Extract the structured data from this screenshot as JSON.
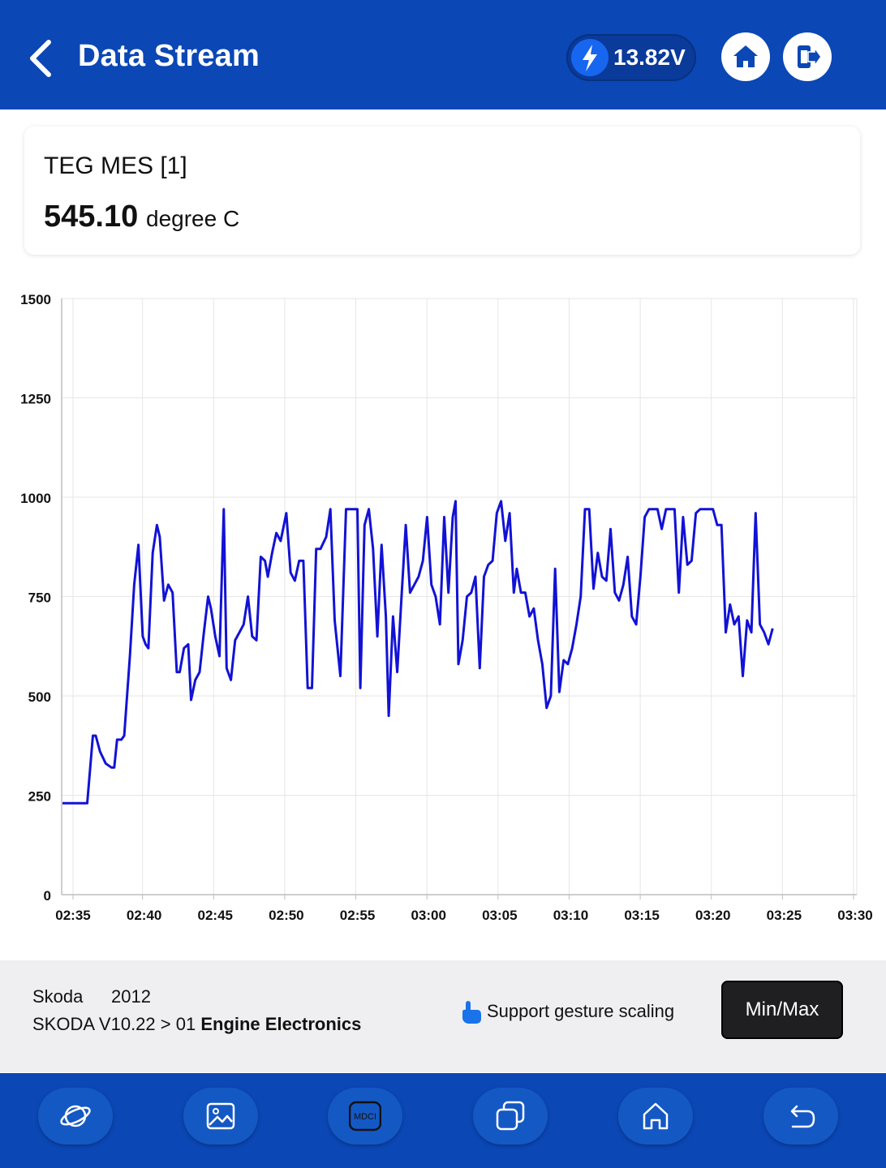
{
  "header": {
    "title": "Data Stream",
    "voltage": "13.82V"
  },
  "card": {
    "name": "TEG MES [1]",
    "value": "545.10",
    "unit": "degree C"
  },
  "chart_data": {
    "type": "line",
    "title": "",
    "xlabel": "",
    "ylabel": "",
    "ylim": [
      0,
      1500
    ],
    "yticks": [
      "0",
      "250",
      "500",
      "750",
      "1000",
      "1250",
      "1500"
    ],
    "xticks": [
      "02:35",
      "02:40",
      "02:45",
      "02:50",
      "02:55",
      "03:00",
      "03:05",
      "03:10",
      "03:15",
      "03:20",
      "03:25",
      "03:30"
    ],
    "xrange_minutes": [
      0,
      55
    ],
    "grid": true,
    "color": "#1212d6",
    "series": [
      {
        "values": [
          [
            0.0,
            230
          ],
          [
            0.3,
            230
          ],
          [
            1.0,
            230
          ],
          [
            1.4,
            400
          ],
          [
            1.6,
            400
          ],
          [
            1.9,
            360
          ],
          [
            2.3,
            330
          ],
          [
            2.7,
            320
          ],
          [
            2.9,
            320
          ],
          [
            3.1,
            390
          ],
          [
            3.4,
            390
          ],
          [
            3.6,
            400
          ],
          [
            4.0,
            600
          ],
          [
            4.3,
            780
          ],
          [
            4.6,
            880
          ],
          [
            4.9,
            650
          ],
          [
            5.1,
            630
          ],
          [
            5.3,
            620
          ],
          [
            5.6,
            860
          ],
          [
            5.9,
            930
          ],
          [
            6.1,
            900
          ],
          [
            6.4,
            740
          ],
          [
            6.7,
            780
          ],
          [
            7.0,
            760
          ],
          [
            7.3,
            560
          ],
          [
            7.5,
            560
          ],
          [
            7.8,
            620
          ],
          [
            8.1,
            630
          ],
          [
            8.3,
            490
          ],
          [
            8.6,
            540
          ],
          [
            8.9,
            560
          ],
          [
            9.2,
            660
          ],
          [
            9.5,
            750
          ],
          [
            9.7,
            720
          ],
          [
            10.0,
            650
          ],
          [
            10.3,
            600
          ],
          [
            10.6,
            970
          ],
          [
            10.8,
            570
          ],
          [
            11.1,
            540
          ],
          [
            11.4,
            640
          ],
          [
            11.7,
            660
          ],
          [
            12.0,
            680
          ],
          [
            12.3,
            750
          ],
          [
            12.6,
            650
          ],
          [
            12.9,
            640
          ],
          [
            13.2,
            850
          ],
          [
            13.5,
            840
          ],
          [
            13.7,
            800
          ],
          [
            14.0,
            860
          ],
          [
            14.3,
            910
          ],
          [
            14.6,
            890
          ],
          [
            15.0,
            960
          ],
          [
            15.3,
            810
          ],
          [
            15.6,
            790
          ],
          [
            15.9,
            840
          ],
          [
            16.2,
            840
          ],
          [
            16.5,
            520
          ],
          [
            16.8,
            520
          ],
          [
            17.1,
            870
          ],
          [
            17.4,
            870
          ],
          [
            17.8,
            900
          ],
          [
            18.1,
            970
          ],
          [
            18.4,
            690
          ],
          [
            18.8,
            550
          ],
          [
            19.2,
            970
          ],
          [
            19.6,
            970
          ],
          [
            20.0,
            970
          ],
          [
            20.2,
            520
          ],
          [
            20.5,
            930
          ],
          [
            20.8,
            970
          ],
          [
            21.1,
            870
          ],
          [
            21.4,
            650
          ],
          [
            21.7,
            880
          ],
          [
            22.0,
            700
          ],
          [
            22.2,
            450
          ],
          [
            22.5,
            700
          ],
          [
            22.8,
            560
          ],
          [
            23.1,
            750
          ],
          [
            23.4,
            930
          ],
          [
            23.7,
            760
          ],
          [
            24.0,
            780
          ],
          [
            24.3,
            800
          ],
          [
            24.6,
            840
          ],
          [
            24.9,
            950
          ],
          [
            25.2,
            780
          ],
          [
            25.5,
            750
          ],
          [
            25.8,
            680
          ],
          [
            26.1,
            950
          ],
          [
            26.4,
            760
          ],
          [
            26.7,
            950
          ],
          [
            26.9,
            990
          ],
          [
            27.1,
            580
          ],
          [
            27.4,
            640
          ],
          [
            27.7,
            750
          ],
          [
            28.0,
            760
          ],
          [
            28.3,
            800
          ],
          [
            28.6,
            570
          ],
          [
            28.9,
            800
          ],
          [
            29.2,
            830
          ],
          [
            29.5,
            840
          ],
          [
            29.8,
            960
          ],
          [
            30.1,
            990
          ],
          [
            30.4,
            890
          ],
          [
            30.7,
            960
          ],
          [
            31.0,
            760
          ],
          [
            31.2,
            820
          ],
          [
            31.5,
            760
          ],
          [
            31.8,
            760
          ],
          [
            32.1,
            700
          ],
          [
            32.4,
            720
          ],
          [
            32.7,
            640
          ],
          [
            33.0,
            580
          ],
          [
            33.3,
            470
          ],
          [
            33.6,
            500
          ],
          [
            33.9,
            820
          ],
          [
            34.2,
            510
          ],
          [
            34.5,
            590
          ],
          [
            34.8,
            580
          ],
          [
            35.1,
            620
          ],
          [
            35.4,
            680
          ],
          [
            35.7,
            750
          ],
          [
            36.0,
            970
          ],
          [
            36.3,
            970
          ],
          [
            36.6,
            770
          ],
          [
            36.9,
            860
          ],
          [
            37.2,
            800
          ],
          [
            37.5,
            790
          ],
          [
            37.8,
            920
          ],
          [
            38.1,
            760
          ],
          [
            38.4,
            740
          ],
          [
            38.7,
            780
          ],
          [
            39.0,
            850
          ],
          [
            39.3,
            700
          ],
          [
            39.6,
            680
          ],
          [
            39.9,
            800
          ],
          [
            40.2,
            950
          ],
          [
            40.5,
            970
          ],
          [
            40.8,
            970
          ],
          [
            41.1,
            970
          ],
          [
            41.4,
            920
          ],
          [
            41.7,
            970
          ],
          [
            42.0,
            970
          ],
          [
            42.3,
            970
          ],
          [
            42.6,
            760
          ],
          [
            42.9,
            950
          ],
          [
            43.2,
            830
          ],
          [
            43.5,
            840
          ],
          [
            43.8,
            960
          ],
          [
            44.1,
            970
          ],
          [
            44.4,
            970
          ],
          [
            44.7,
            970
          ],
          [
            45.0,
            970
          ],
          [
            45.3,
            930
          ],
          [
            45.6,
            930
          ],
          [
            45.9,
            660
          ],
          [
            46.2,
            730
          ],
          [
            46.5,
            680
          ],
          [
            46.8,
            700
          ],
          [
            47.1,
            550
          ],
          [
            47.4,
            690
          ],
          [
            47.7,
            660
          ],
          [
            48.0,
            960
          ],
          [
            48.3,
            680
          ],
          [
            48.6,
            660
          ],
          [
            48.9,
            630
          ],
          [
            49.2,
            670
          ]
        ]
      }
    ]
  },
  "info": {
    "make": "Skoda",
    "year": "2012",
    "path_prefix": "SKODA V10.22 >  01",
    "path_system": "Engine  Electronics",
    "gesture_hint": "Support gesture scaling",
    "minmax_label": "Min/Max"
  },
  "nav": {
    "vci_label": "MDCI"
  },
  "icons": [
    "back-arrow-icon",
    "lightning-bolt-icon",
    "home-icon",
    "exit-icon",
    "pointing-hand-icon",
    "planet-icon",
    "image-icon",
    "vci-icon",
    "windows-icon",
    "home-outline-icon",
    "return-icon"
  ],
  "colors": {
    "header": "#0b47b5",
    "line": "#1212d6"
  }
}
